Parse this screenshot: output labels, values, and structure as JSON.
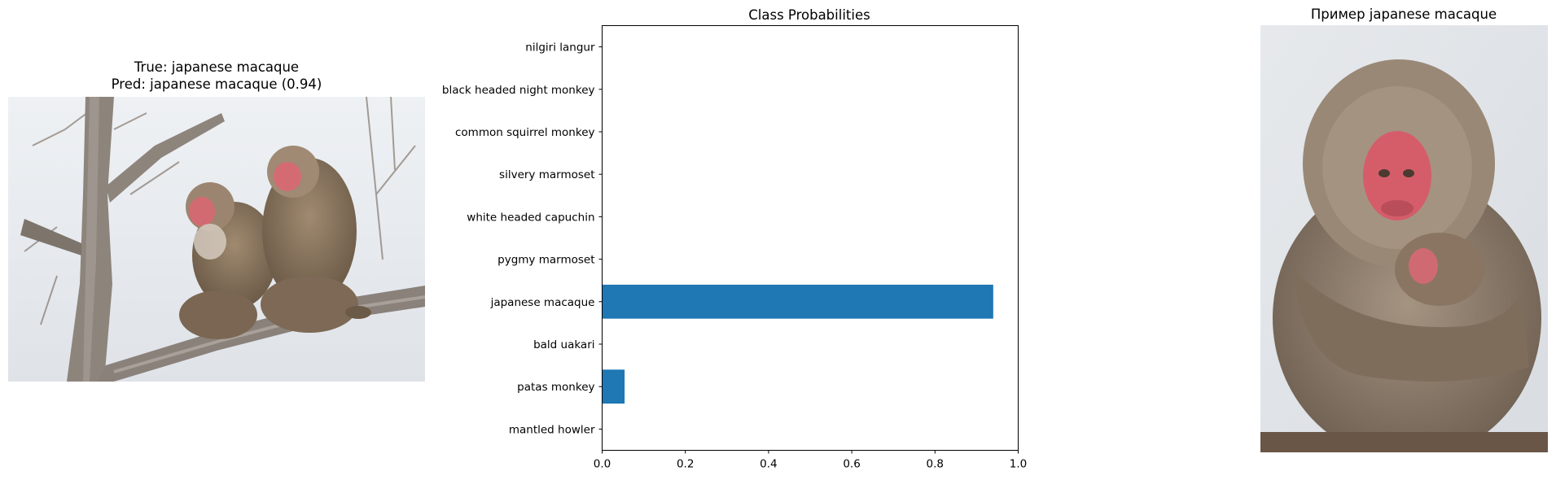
{
  "left_panel": {
    "title_true": "True: japanese macaque",
    "title_pred": "Pred: japanese macaque (0.94)",
    "image_subject": "two japanese macaques on a bare tree branch"
  },
  "right_panel": {
    "title": "Пример japanese macaque",
    "image_subject": "japanese macaque hugging its baby"
  },
  "chart_data": {
    "type": "bar",
    "orientation": "horizontal",
    "title": "Class Probabilities",
    "xlabel": "",
    "ylabel": "",
    "xlim": [
      0,
      1.0
    ],
    "xticks": [
      "0.0",
      "0.2",
      "0.4",
      "0.6",
      "0.8",
      "1.0"
    ],
    "categories": [
      "nilgiri langur",
      "black headed night monkey",
      "common squirrel monkey",
      "silvery marmoset",
      "white headed capuchin",
      "pygmy marmoset",
      "japanese macaque",
      "bald uakari",
      "patas monkey",
      "mantled howler"
    ],
    "values": [
      0.0,
      0.0,
      0.0,
      0.0,
      0.0,
      0.0,
      0.94,
      0.0,
      0.054,
      0.0
    ],
    "bar_color": "#1f77b4",
    "grid": false
  }
}
